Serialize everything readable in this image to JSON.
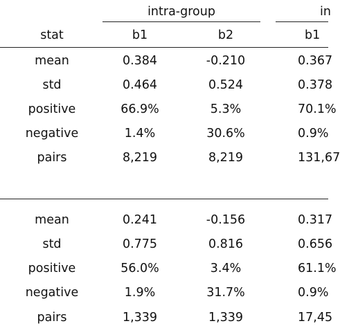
{
  "header": {
    "group_left": "intra-group",
    "group_right_partial": "in",
    "stat_label": "stat",
    "col_b1": "b1",
    "col_b2": "b2",
    "col_b1_right": "b1"
  },
  "panel1": {
    "rows": [
      {
        "stat": "mean",
        "b1": "0.384",
        "b2": "-0.210",
        "b1_right": "0.367"
      },
      {
        "stat": "std",
        "b1": "0.464",
        "b2": "0.524",
        "b1_right": "0.378"
      },
      {
        "stat": "positive",
        "b1": "66.9%",
        "b2": "5.3%",
        "b1_right": "70.1%"
      },
      {
        "stat": "negative",
        "b1": "1.4%",
        "b2": "30.6%",
        "b1_right": "0.9%"
      },
      {
        "stat": "pairs",
        "b1": "8,219",
        "b2": "8,219",
        "b1_right": "131,67"
      }
    ]
  },
  "panel2": {
    "rows": [
      {
        "stat": "mean",
        "b1": "0.241",
        "b2": "-0.156",
        "b1_right": "0.317"
      },
      {
        "stat": "std",
        "b1": "0.775",
        "b2": "0.816",
        "b1_right": "0.656"
      },
      {
        "stat": "positive",
        "b1": "56.0%",
        "b2": "3.4%",
        "b1_right": "61.1%"
      },
      {
        "stat": "negative",
        "b1": "1.9%",
        "b2": "31.7%",
        "b1_right": "0.9%"
      },
      {
        "stat": "pairs",
        "b1": "1,339",
        "b2": "1,339",
        "b1_right": "17,45"
      }
    ]
  }
}
